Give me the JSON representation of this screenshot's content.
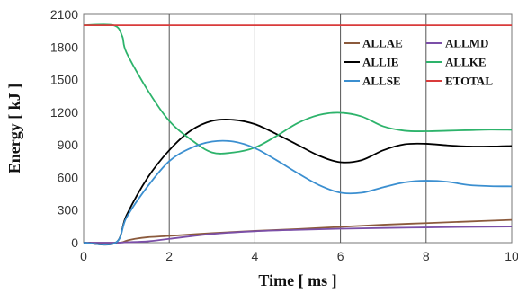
{
  "chart_data": {
    "type": "line",
    "xlabel": "Time [ ms ]",
    "ylabel": "Energy [ kJ ]",
    "xlim": [
      0,
      10
    ],
    "ylim": [
      0,
      2100
    ],
    "xticks": [
      0,
      2,
      4,
      6,
      8,
      10
    ],
    "yticks": [
      0,
      300,
      600,
      900,
      1200,
      1500,
      1800,
      2100
    ],
    "grid": "vertical",
    "legend": {
      "placement": "top-right",
      "columns": 2
    },
    "series": [
      {
        "name": "ALLAE",
        "color": "#8B5A3C",
        "x": [
          0,
          0.8,
          1,
          1.2,
          1.5,
          2,
          3,
          4,
          5,
          6,
          7,
          8,
          9,
          10
        ],
        "y": [
          0,
          0,
          18,
          35,
          50,
          62,
          88,
          108,
          125,
          145,
          165,
          180,
          195,
          210
        ]
      },
      {
        "name": "ALLMD",
        "color": "#7B4FA8",
        "x": [
          0,
          0.8,
          1,
          1.5,
          2,
          3,
          4,
          5,
          6,
          7,
          8,
          9,
          10
        ],
        "y": [
          0,
          0,
          4,
          12,
          35,
          80,
          105,
          118,
          128,
          135,
          140,
          145,
          148
        ]
      },
      {
        "name": "ALLIE",
        "color": "#000000",
        "x": [
          0,
          0.75,
          1,
          1.5,
          2,
          2.5,
          3,
          3.5,
          4,
          4.5,
          5,
          5.5,
          6,
          6.5,
          7,
          7.5,
          8,
          8.5,
          9,
          9.5,
          10
        ],
        "y": [
          0,
          0,
          250,
          600,
          850,
          1030,
          1120,
          1130,
          1090,
          1000,
          900,
          800,
          740,
          760,
          850,
          905,
          910,
          895,
          885,
          885,
          890
        ]
      },
      {
        "name": "ALLKE",
        "color": "#2DB36B",
        "x": [
          0,
          0.7,
          0.9,
          1,
          1.5,
          2,
          2.5,
          3,
          3.5,
          4,
          4.5,
          5,
          5.5,
          6,
          6.5,
          7,
          7.5,
          8,
          8.5,
          9,
          9.5,
          10
        ],
        "y": [
          2000,
          2000,
          1900,
          1750,
          1400,
          1120,
          950,
          830,
          830,
          875,
          980,
          1100,
          1175,
          1195,
          1160,
          1070,
          1030,
          1025,
          1030,
          1035,
          1040,
          1038
        ]
      },
      {
        "name": "ALLSE",
        "color": "#3B8FD0",
        "x": [
          0,
          0.75,
          1,
          1.5,
          2,
          2.5,
          3,
          3.5,
          4,
          4.5,
          5,
          5.5,
          6,
          6.5,
          7,
          7.5,
          8,
          8.5,
          9,
          9.5,
          10
        ],
        "y": [
          0,
          0,
          230,
          520,
          750,
          870,
          930,
          930,
          870,
          760,
          640,
          530,
          460,
          460,
          510,
          555,
          570,
          560,
          530,
          520,
          518
        ]
      },
      {
        "name": "ETOTAL",
        "color": "#D93B3B",
        "x": [
          0,
          10
        ],
        "y": [
          2000,
          2000
        ]
      }
    ]
  }
}
